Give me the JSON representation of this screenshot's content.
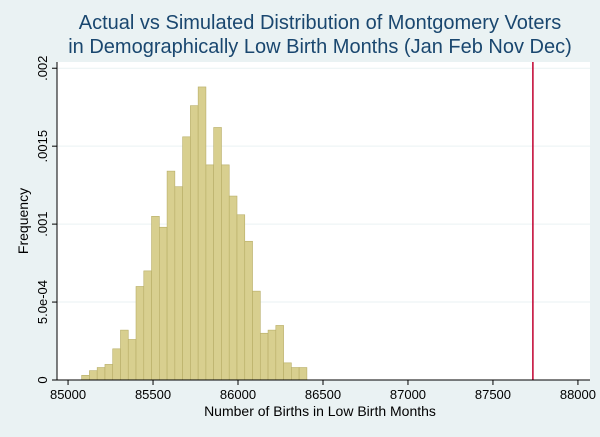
{
  "chart_data": {
    "type": "histogram",
    "title": [
      "Actual vs Simulated Distribution of Montgomery Voters",
      "in Demographically Low Birth Months (Jan Feb Nov Dec)"
    ],
    "xlabel": "Number of Births in Low Birth Months",
    "ylabel": "Frequency",
    "bins": [
      85080,
      85125.7,
      85171.4,
      85217.1,
      85262.8,
      85308.5,
      85354.2,
      85399.9,
      85445.6,
      85491.3,
      85537,
      85582.7,
      85628.4,
      85674.1,
      85719.8,
      85765.5,
      85811.2,
      85856.9,
      85902.6,
      85948.3,
      85994,
      86039.7,
      86085.4,
      86131.1,
      86176.8,
      86222.5,
      86268.2,
      86313.9,
      86359.6,
      86405.3
    ],
    "values": [
      3e-05,
      6e-05,
      8e-05,
      0.0001,
      0.0002,
      0.00032,
      0.00026,
      0.0006,
      0.0007,
      0.00105,
      0.00098,
      0.00134,
      0.00124,
      0.00156,
      0.00176,
      0.00188,
      0.00138,
      0.00162,
      0.00138,
      0.00118,
      0.00106,
      0.00089,
      0.00057,
      0.0003,
      0.00032,
      0.00035,
      0.00011,
      8e-05,
      8e-05
    ],
    "color": "#d8cf8f",
    "xline": 87735,
    "xline_color": "#c1002f",
    "xlim": [
      84935,
      88071
    ],
    "ylim": [
      0,
      0.00204
    ],
    "xticks": [
      85000,
      85500,
      86000,
      86500,
      87000,
      87500,
      88000
    ],
    "yticks": [
      0,
      {
        "value": 0.0005,
        "label": "5.0e-04"
      },
      {
        "value": 0.001,
        "label": ".001"
      },
      {
        "value": 0.0015,
        "label": ".0015"
      },
      {
        "value": 0.002,
        "label": ".002"
      }
    ],
    "grid": true
  }
}
